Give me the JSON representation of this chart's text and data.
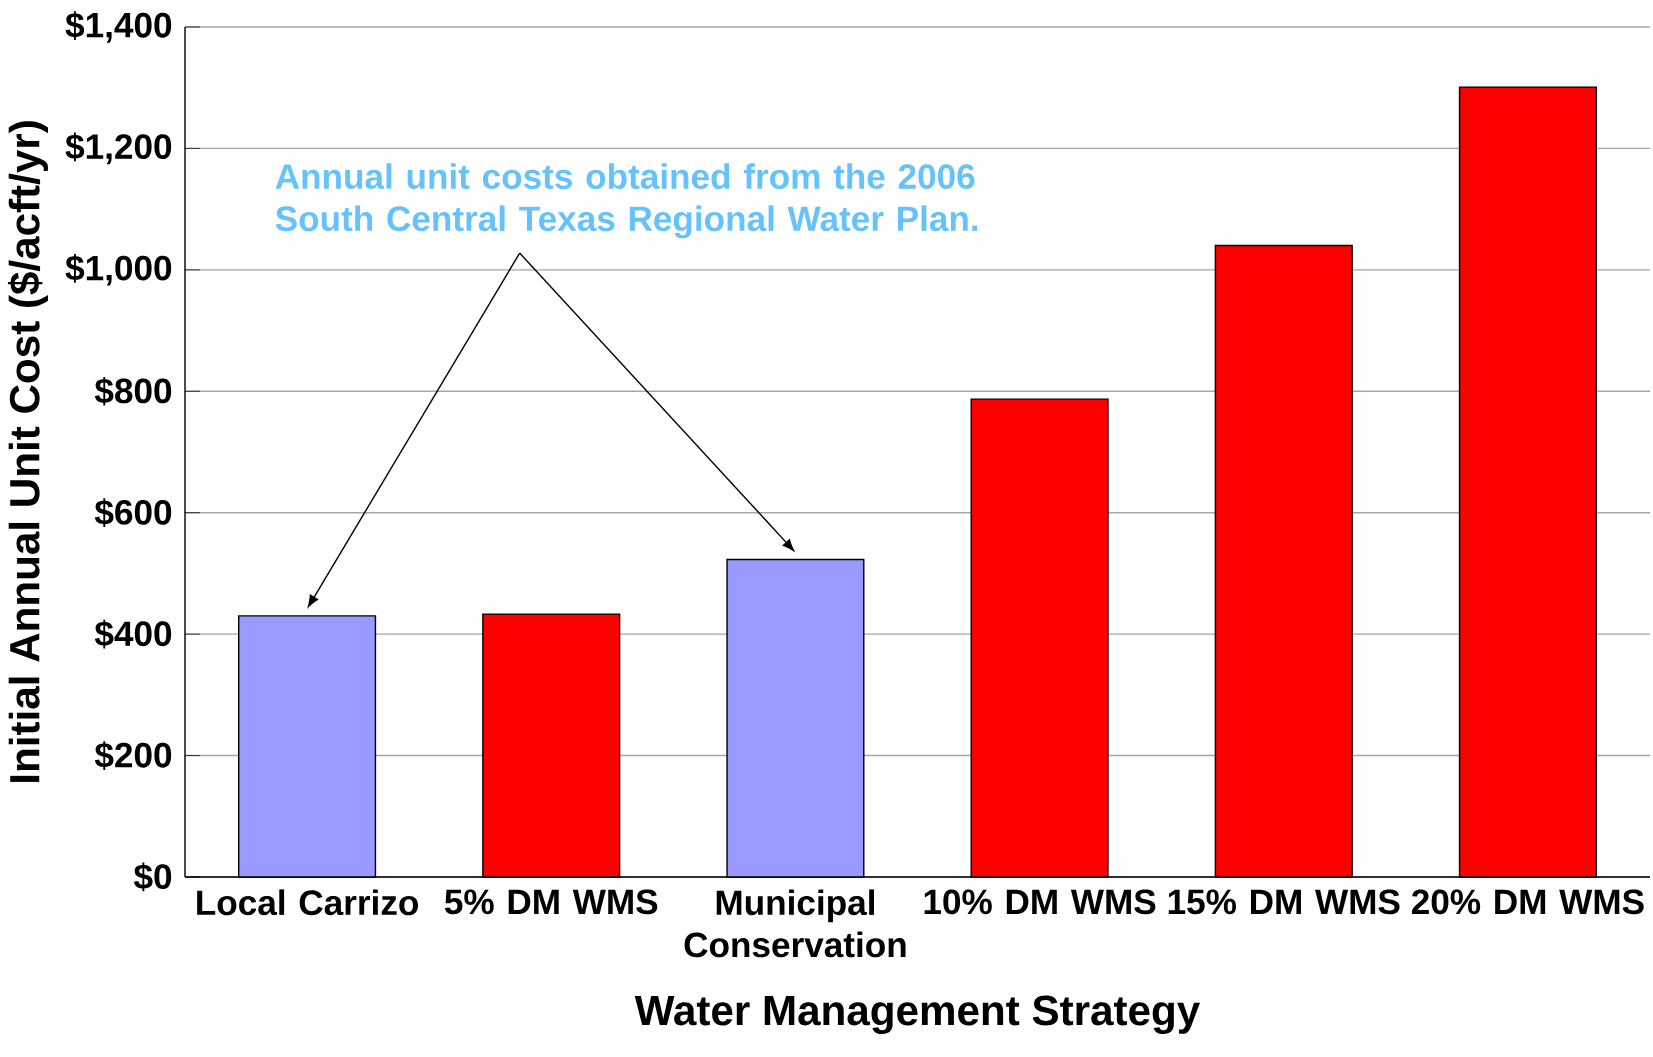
{
  "chart_data": {
    "type": "bar",
    "xlabel": "Water Management Strategy",
    "ylabel": "Initial Annual Unit Cost ($/acft/yr)",
    "categories": [
      "Local Carrizo",
      "5% DM WMS",
      "Municipal Conservation",
      "10% DM WMS",
      "15% DM WMS",
      "20% DM WMS"
    ],
    "values": [
      430,
      433,
      523,
      787,
      1040,
      1301
    ],
    "colors": [
      "#9999ff",
      "#ff0000",
      "#9999ff",
      "#ff0000",
      "#ff0000",
      "#ff0000"
    ],
    "ylim": [
      0,
      1400
    ],
    "yticks": [
      {
        "value": 0,
        "label": "$0"
      },
      {
        "value": 200,
        "label": "$200"
      },
      {
        "value": 400,
        "label": "$400"
      },
      {
        "value": 600,
        "label": "$600"
      },
      {
        "value": 800,
        "label": "$800"
      },
      {
        "value": 1000,
        "label": "$1,000"
      },
      {
        "value": 1200,
        "label": "$1,200"
      },
      {
        "value": 1400,
        "label": "$1,400"
      }
    ],
    "grid": "y",
    "annotations": [
      "Annual unit costs obtained from the 2006 South Central Texas Regional Water Plan."
    ]
  }
}
